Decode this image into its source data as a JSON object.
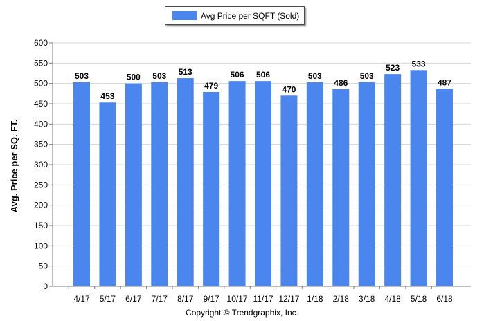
{
  "chart_data": {
    "type": "bar",
    "categories": [
      "4/17",
      "5/17",
      "6/17",
      "7/17",
      "8/17",
      "9/17",
      "10/17",
      "11/17",
      "12/17",
      "1/18",
      "2/18",
      "3/18",
      "4/18",
      "5/18",
      "6/18"
    ],
    "series": [
      {
        "name": "Avg Price per SQFT (Sold)",
        "values": [
          503,
          453,
          500,
          503,
          513,
          479,
          506,
          506,
          470,
          503,
          486,
          503,
          523,
          533,
          487
        ]
      }
    ],
    "ylabel": "Avg. Price per SQ. FT.",
    "xlabel": "",
    "ylim": [
      0,
      600
    ],
    "yticks": [
      0,
      50,
      100,
      150,
      200,
      250,
      300,
      350,
      400,
      450,
      500,
      550,
      600
    ],
    "grid": true,
    "legend": "top-center",
    "data_labels": true
  },
  "colors": {
    "bar": "#4b86ee",
    "grid": "#d4d4d4",
    "axis": "#7a7a7a"
  },
  "footer": {
    "text": "Copyright © Trendgraphix, Inc."
  }
}
